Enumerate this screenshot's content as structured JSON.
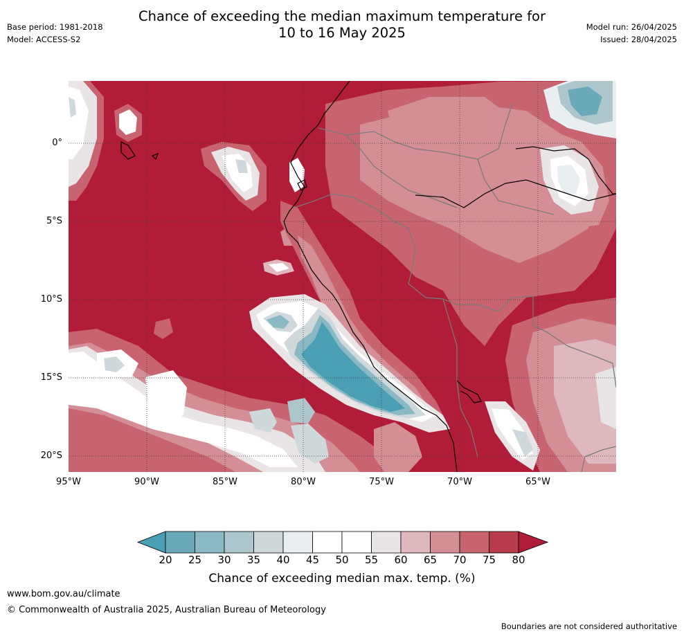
{
  "title_line1": "Chance of exceeding the median maximum temperature for",
  "title_line2": "10 to 16 May 2025",
  "base_period": "Base period: 1981-2018",
  "model": "Model: ACCESS-S2",
  "model_run": "Model run: 26/04/2025",
  "issued": "Issued: 28/04/2025",
  "lat_ticks": [
    "0°",
    "5°S",
    "10°S",
    "15°S",
    "20°S"
  ],
  "lon_ticks": [
    "95°W",
    "90°W",
    "85°W",
    "80°W",
    "75°W",
    "70°W",
    "65°W"
  ],
  "colorbar": {
    "ticks": [
      "20",
      "25",
      "30",
      "35",
      "40",
      "45",
      "50",
      "55",
      "60",
      "65",
      "70",
      "75",
      "80"
    ],
    "label": "Chance of exceeding median max. temp. (%)",
    "colors": {
      "under": "#4a9fb5",
      "c20_25": "#6aaab8",
      "c25_30": "#8bb9c3",
      "c30_35": "#adc6cb",
      "c35_40": "#cfd9dc",
      "c40_45": "#e9eef0",
      "c45_50": "#ffffff",
      "c50_55": "#ffffff",
      "c55_60": "#e9e5e6",
      "c60_65": "#dfb8bd",
      "c65_70": "#d48e96",
      "c70_75": "#c76470",
      "c75_80": "#b83c4e",
      "over": "#b11c38"
    }
  },
  "footer_url": "www.bom.gov.au/climate",
  "footer_copyright": "© Commonwealth of Australia 2025, Australian Bureau of Meteorology",
  "footer_disclaimer": "Boundaries are not considered authoritative"
}
